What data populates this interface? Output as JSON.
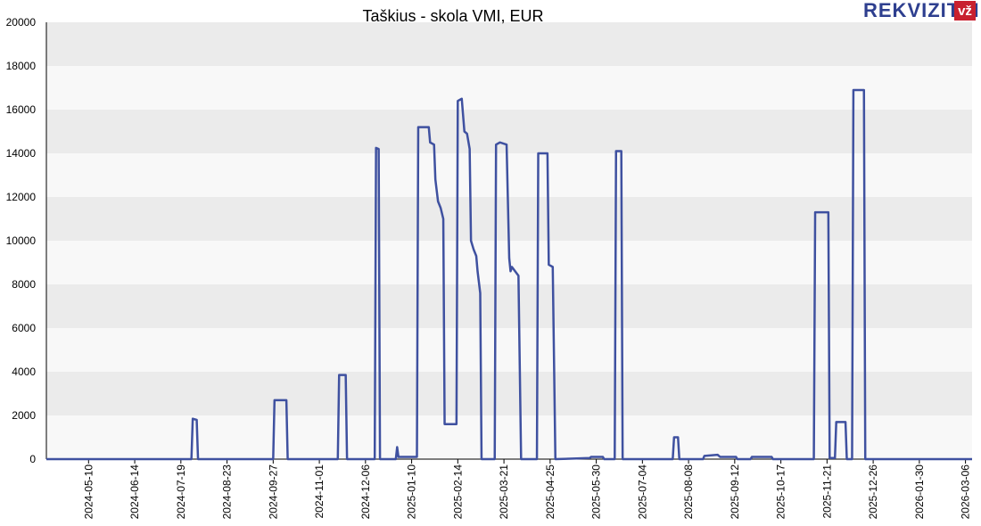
{
  "brand": {
    "name": "REKVIZITAI",
    "badge": "vž"
  },
  "chart_data": {
    "type": "line",
    "title": "Taškius - skola VMI, EUR",
    "xlim": [
      "2024-04-08",
      "2026-03-11"
    ],
    "xticks": [
      "2024-05-10",
      "2024-06-14",
      "2024-07-19",
      "2024-08-23",
      "2024-09-27",
      "2024-11-01",
      "2024-12-06",
      "2025-01-10",
      "2025-02-14",
      "2025-03-21",
      "2025-04-25",
      "2025-05-30",
      "2025-07-04",
      "2025-08-08",
      "2025-09-12",
      "2025-10-17",
      "2025-11-21",
      "2025-12-26",
      "2026-01-30",
      "2026-03-06"
    ],
    "ylim": [
      0,
      20000
    ],
    "yticks": [
      0,
      2000,
      4000,
      6000,
      8000,
      10000,
      12000,
      14000,
      16000,
      18000,
      20000
    ],
    "grid": true,
    "x": [
      "2024-04-08",
      "2024-07-27",
      "2024-07-28",
      "2024-07-31",
      "2024-08-01",
      "2024-09-27",
      "2024-09-28",
      "2024-10-07",
      "2024-10-08",
      "2024-11-15",
      "2024-11-16",
      "2024-11-21",
      "2024-11-22",
      "2024-12-13",
      "2024-12-14",
      "2024-12-16",
      "2024-12-17",
      "2024-12-29",
      "2024-12-30",
      "2024-12-31",
      "2025-01-14",
      "2025-01-15",
      "2025-01-23",
      "2025-01-24",
      "2025-01-27",
      "2025-01-28",
      "2025-01-30",
      "2025-02-01",
      "2025-02-03",
      "2025-02-04",
      "2025-02-13",
      "2025-02-14",
      "2025-02-17",
      "2025-02-19",
      "2025-02-21",
      "2025-02-23",
      "2025-02-24",
      "2025-02-26",
      "2025-02-28",
      "2025-03-01",
      "2025-03-03",
      "2025-03-04",
      "2025-03-14",
      "2025-03-15",
      "2025-03-18",
      "2025-03-23",
      "2025-03-25",
      "2025-03-26",
      "2025-03-27",
      "2025-04-01",
      "2025-04-03",
      "2025-04-15",
      "2025-04-16",
      "2025-04-23",
      "2025-04-24",
      "2025-04-27",
      "2025-04-29",
      "2025-05-25",
      "2025-05-26",
      "2025-06-04",
      "2025-06-05",
      "2025-06-13",
      "2025-06-14",
      "2025-06-18",
      "2025-06-19",
      "2025-07-27",
      "2025-07-28",
      "2025-07-31",
      "2025-08-01",
      "2025-08-19",
      "2025-08-20",
      "2025-08-30",
      "2025-09-01",
      "2025-09-13",
      "2025-09-14",
      "2025-09-24",
      "2025-09-25",
      "2025-10-10",
      "2025-10-11",
      "2025-11-11",
      "2025-11-12",
      "2025-11-22",
      "2025-11-23",
      "2025-11-27",
      "2025-11-28",
      "2025-12-05",
      "2025-12-06",
      "2025-12-10",
      "2025-12-11",
      "2025-12-19",
      "2025-12-20",
      "2026-03-11"
    ],
    "series": [
      {
        "color": "#3f51a0",
        "values": [
          0,
          0,
          1850,
          1800,
          0,
          0,
          2700,
          2700,
          0,
          0,
          3850,
          3850,
          0,
          0,
          14250,
          14200,
          0,
          0,
          550,
          100,
          100,
          15200,
          15200,
          14500,
          14400,
          12800,
          11800,
          11500,
          11000,
          1600,
          1600,
          16400,
          16500,
          15000,
          14900,
          14200,
          10000,
          9600,
          9300,
          8600,
          7600,
          0,
          0,
          14400,
          14500,
          14400,
          9200,
          8600,
          8800,
          8400,
          0,
          0,
          14000,
          14000,
          8900,
          8800,
          0,
          50,
          100,
          100,
          0,
          0,
          14100,
          14100,
          0,
          0,
          1000,
          1000,
          0,
          0,
          150,
          200,
          100,
          100,
          0,
          0,
          100,
          100,
          0,
          0,
          11300,
          11300,
          50,
          50,
          1700,
          1700,
          0,
          0,
          16900,
          16900,
          0,
          0
        ]
      }
    ]
  }
}
